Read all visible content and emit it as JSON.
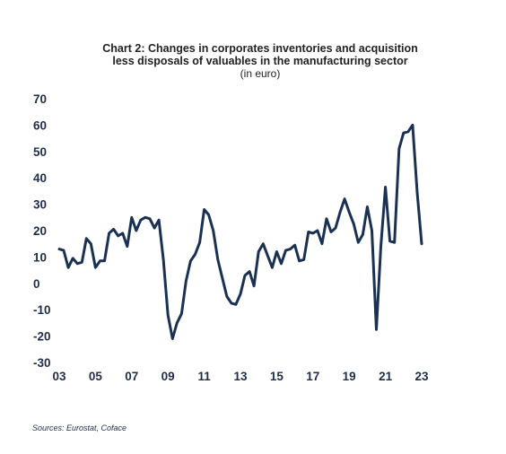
{
  "chart_data": {
    "type": "line",
    "title": "Chart 2: Changes in corporates inventories and acquisition less disposals of valuables in the manufacturing sector",
    "subtitle": "(in euro)",
    "xlabel": "",
    "ylabel": "",
    "xlim": [
      2003,
      2023
    ],
    "ylim": [
      -30,
      70
    ],
    "yticks": [
      70,
      60,
      50,
      40,
      30,
      20,
      10,
      0,
      -10,
      -20,
      -30
    ],
    "xtick_labels": [
      "03",
      "05",
      "07",
      "09",
      "11",
      "13",
      "15",
      "17",
      "19",
      "21",
      "23"
    ],
    "xtick_years": [
      2003,
      2005,
      2007,
      2009,
      2011,
      2013,
      2015,
      2017,
      2019,
      2021,
      2023
    ],
    "grid": false,
    "legend": "none",
    "line_color": "#1a3152",
    "series": [
      {
        "x": [
          2003.0,
          2003.25,
          2003.5,
          2003.75,
          2004.0,
          2004.25,
          2004.5,
          2004.75,
          2005.0,
          2005.25,
          2005.5,
          2005.75,
          2006.0,
          2006.25,
          2006.5,
          2006.75,
          2007.0,
          2007.25,
          2007.5,
          2007.75,
          2008.0,
          2008.25,
          2008.5,
          2008.75,
          2009.0,
          2009.25,
          2009.5,
          2009.75,
          2010.0,
          2010.25,
          2010.5,
          2010.75,
          2011.0,
          2011.25,
          2011.5,
          2011.75,
          2012.0,
          2012.25,
          2012.5,
          2012.75,
          2013.0,
          2013.25,
          2013.5,
          2013.75,
          2014.0,
          2014.25,
          2014.5,
          2014.75,
          2015.0,
          2015.25,
          2015.5,
          2015.75,
          2016.0,
          2016.25,
          2016.5,
          2016.75,
          2017.0,
          2017.25,
          2017.5,
          2017.75,
          2018.0,
          2018.25,
          2018.5,
          2018.75,
          2019.0,
          2019.25,
          2019.5,
          2019.75,
          2020.0,
          2020.25,
          2020.5,
          2020.75,
          2021.0,
          2021.25,
          2021.5,
          2021.75,
          2022.0,
          2022.25,
          2022.5,
          2022.75,
          2023.0
        ],
        "values": [
          13,
          12.5,
          6,
          9.5,
          7.5,
          8,
          17,
          15,
          6,
          8.5,
          8.5,
          19,
          20.5,
          18,
          19,
          14,
          25,
          20,
          24,
          25,
          24.5,
          21,
          24,
          9,
          -12,
          -21,
          -15,
          -11.5,
          1,
          8.5,
          11,
          15.5,
          28,
          26,
          20,
          9,
          2,
          -5,
          -7.5,
          -8,
          -4,
          3,
          4.5,
          -1,
          12,
          15,
          10.5,
          6,
          12,
          7.5,
          12.5,
          13,
          14.5,
          8.5,
          9,
          19.5,
          19,
          20,
          15,
          24.5,
          19.5,
          21,
          27,
          32,
          27,
          22.5,
          15.5,
          18.5,
          29,
          20,
          -17.5,
          14,
          36.5,
          16,
          15.5,
          51,
          57,
          57.5,
          60,
          34.5,
          15
        ]
      }
    ]
  },
  "source": "Sources: Eurostat, Coface"
}
